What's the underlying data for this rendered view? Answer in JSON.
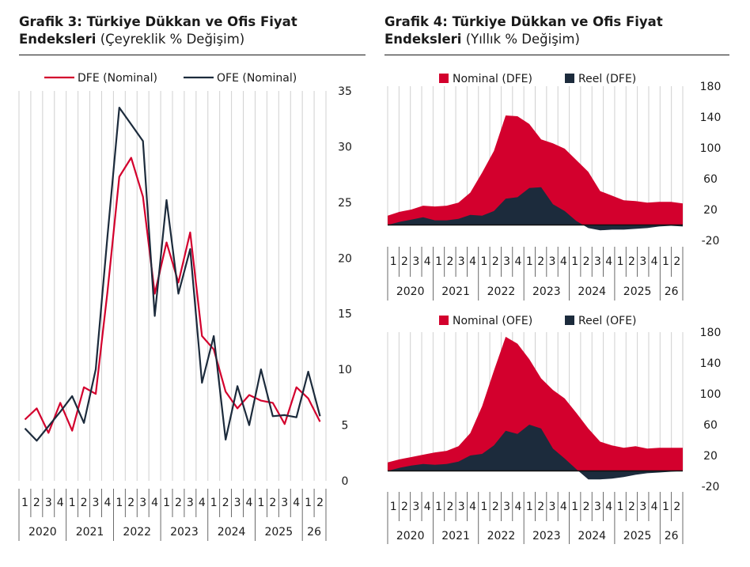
{
  "colors": {
    "red": "#d3002d",
    "navy": "#1c2b3c",
    "grid": "#d0d0d0"
  },
  "left_panel": {
    "title_bold_1": "Grafik 3: Türkiye Dükkan ve Ofis Fiyat",
    "title_bold_2": "Endeksleri",
    "title_sub": "(Çeyreklik % Değişim)"
  },
  "right_panel": {
    "title_bold_1": "Grafik 4: Türkiye Dükkan ve Ofis Fiyat",
    "title_bold_2": "Endeksleri",
    "title_sub": "(Yıllık % Değişim)"
  },
  "chart_data": [
    {
      "type": "line",
      "title": "Grafik 3: Türkiye Dükkan ve Ofis Fiyat Endeksleri (Çeyreklik % Değişim)",
      "quarters": [
        "1",
        "2",
        "3",
        "4",
        "1",
        "2",
        "3",
        "4",
        "1",
        "2",
        "3",
        "4",
        "1",
        "2",
        "3",
        "4",
        "1",
        "2",
        "3",
        "4",
        "1",
        "2",
        "3",
        "4",
        "1",
        "2"
      ],
      "years": [
        {
          "label": "2020",
          "count": 4
        },
        {
          "label": "2021",
          "count": 4
        },
        {
          "label": "2022",
          "count": 4
        },
        {
          "label": "2023",
          "count": 4
        },
        {
          "label": "2024",
          "count": 4
        },
        {
          "label": "2025",
          "count": 4
        },
        {
          "label": "26",
          "count": 2
        }
      ],
      "ylim": [
        0,
        35
      ],
      "yticks": [
        0,
        5,
        10,
        15,
        20,
        25,
        30,
        35
      ],
      "grid": true,
      "legend": "top",
      "series": [
        {
          "name": "DFE (Nominal)",
          "color": "#d3002d",
          "values": [
            5.5,
            6.5,
            4.3,
            7.0,
            4.5,
            8.4,
            7.8,
            17.0,
            27.3,
            29.0,
            25.5,
            16.8,
            21.4,
            17.8,
            22.3,
            13.0,
            11.8,
            8.0,
            6.5,
            7.7,
            7.2,
            7.0,
            5.1,
            8.4,
            7.4,
            5.3
          ]
        },
        {
          "name": "OFE (Nominal)",
          "color": "#1c2b3c",
          "values": [
            4.7,
            3.6,
            4.9,
            6.2,
            7.6,
            5.2,
            10.0,
            22.0,
            33.5,
            32.0,
            30.5,
            14.8,
            25.2,
            16.8,
            20.8,
            8.8,
            13.0,
            3.7,
            8.5,
            5.0,
            10.0,
            5.8,
            5.9,
            5.7,
            9.8,
            5.8
          ]
        }
      ]
    },
    {
      "type": "area",
      "title": "Grafik 4: Türkiye Dükkan ve Ofis Fiyat Endeksleri (Yıllık % Değişim)",
      "quarters": [
        "1",
        "2",
        "3",
        "4",
        "1",
        "2",
        "3",
        "4",
        "1",
        "2",
        "3",
        "4",
        "1",
        "2",
        "3",
        "4",
        "1",
        "2",
        "3",
        "4",
        "1",
        "2",
        "3",
        "4",
        "1",
        "2"
      ],
      "years": [
        {
          "label": "2020",
          "count": 4
        },
        {
          "label": "2021",
          "count": 4
        },
        {
          "label": "2022",
          "count": 4
        },
        {
          "label": "2023",
          "count": 4
        },
        {
          "label": "2024",
          "count": 4
        },
        {
          "label": "2025",
          "count": 4
        },
        {
          "label": "26",
          "count": 2
        }
      ],
      "ylim": [
        -20,
        180
      ],
      "yticks": [
        -20,
        20,
        60,
        100,
        140,
        180
      ],
      "legend": "top",
      "series": [
        {
          "name": "Nominal (DFE)",
          "color": "#d3002d",
          "values": [
            12,
            17,
            20,
            25,
            24,
            25,
            29,
            42,
            68,
            96,
            142,
            141,
            131,
            111,
            106,
            99,
            84,
            69,
            44,
            38,
            32,
            31,
            29,
            30,
            30,
            28
          ]
        },
        {
          "name": "Reel (DFE)",
          "color": "#1c2b3c",
          "values": [
            0,
            4,
            7,
            10,
            6,
            6,
            8,
            13,
            12,
            18,
            34,
            36,
            48,
            49,
            27,
            18,
            5,
            -4,
            -7,
            -6,
            -6,
            -5,
            -4,
            -2,
            -1,
            -2
          ]
        }
      ]
    },
    {
      "type": "area",
      "title": "Grafik 4: Türkiye Dükkan ve Ofis Fiyat Endeksleri (Yıllık % Değişim)",
      "quarters": [
        "1",
        "2",
        "3",
        "4",
        "1",
        "2",
        "3",
        "4",
        "1",
        "2",
        "3",
        "4",
        "1",
        "2",
        "3",
        "4",
        "1",
        "2",
        "3",
        "4",
        "1",
        "2",
        "3",
        "4",
        "1",
        "2"
      ],
      "years": [
        {
          "label": "2020",
          "count": 4
        },
        {
          "label": "2021",
          "count": 4
        },
        {
          "label": "2022",
          "count": 4
        },
        {
          "label": "2023",
          "count": 4
        },
        {
          "label": "2024",
          "count": 4
        },
        {
          "label": "2025",
          "count": 4
        },
        {
          "label": "26",
          "count": 2
        }
      ],
      "ylim": [
        -20,
        180
      ],
      "yticks": [
        -20,
        20,
        60,
        100,
        140,
        180
      ],
      "legend": "top",
      "series": [
        {
          "name": "Nominal (OFE)",
          "color": "#d3002d",
          "values": [
            11,
            15,
            18,
            21,
            24,
            26,
            32,
            49,
            84,
            130,
            174,
            165,
            145,
            120,
            105,
            94,
            75,
            55,
            38,
            33,
            30,
            32,
            29,
            30,
            30,
            30
          ]
        },
        {
          "name": "Reel (OFE)",
          "color": "#1c2b3c",
          "values": [
            0,
            4,
            7,
            9,
            8,
            9,
            12,
            20,
            22,
            33,
            52,
            48,
            60,
            55,
            29,
            16,
            2,
            -11,
            -11,
            -10,
            -8,
            -5,
            -3,
            -2,
            -1,
            0
          ]
        }
      ]
    }
  ]
}
